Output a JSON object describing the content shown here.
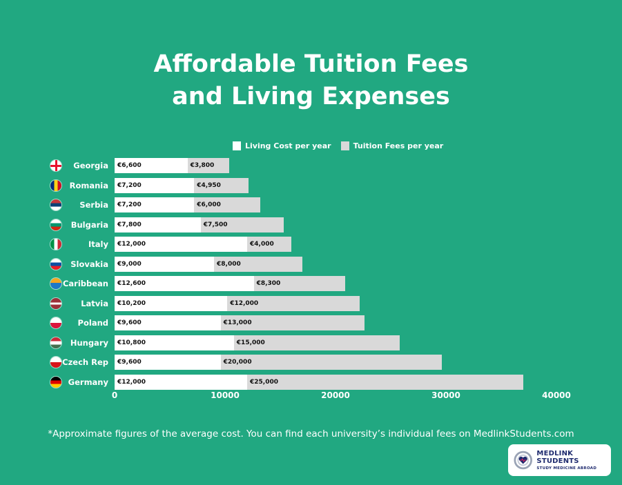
{
  "title_line1": "Affordable Tuition Fees",
  "title_line2": "and Living Expenses",
  "legend": {
    "living": "Living Cost per year",
    "tuition": "Tuition Fees per year"
  },
  "colors": {
    "background": "#21a881",
    "living": "#ffffff",
    "tuition": "#d9d9d9"
  },
  "chart_data": {
    "type": "bar",
    "orientation": "horizontal",
    "stacked": true,
    "categories": [
      "Georgia",
      "Romania",
      "Serbia",
      "Bulgaria",
      "Italy",
      "Slovakia",
      "Caribbean",
      "Latvia",
      "Poland",
      "Hungary",
      "Czech Rep",
      "Germany"
    ],
    "series": [
      {
        "name": "Living Cost per year",
        "values": [
          6600,
          7200,
          7200,
          7800,
          12000,
          9000,
          12600,
          10200,
          9600,
          10800,
          9600,
          12000
        ],
        "labels": [
          "€6,600",
          "€7,200",
          "€7,200",
          "€7,800",
          "€12,000",
          "€9,000",
          "€12,600",
          "€10,200",
          "€9,600",
          "€10,800",
          "€9,600",
          "€12,000"
        ]
      },
      {
        "name": "Tuition Fees per year",
        "values": [
          3800,
          4950,
          6000,
          7500,
          4000,
          8000,
          8300,
          12000,
          13000,
          15000,
          20000,
          25000
        ],
        "labels": [
          "€3,800",
          "€4,950",
          "€6,000",
          "€7,500",
          "€4,000",
          "€8,000",
          "€8,300",
          "€12,000",
          "€13,000",
          "€15,000",
          "€20,000",
          "€25,000"
        ]
      }
    ],
    "xlim": [
      0,
      40000
    ],
    "xticks": [
      "0",
      "10000",
      "20000",
      "30000",
      "40000"
    ],
    "grid": false,
    "legend_position": "top"
  },
  "flags": [
    "georgia-flag-icon",
    "romania-flag-icon",
    "serbia-flag-icon",
    "bulgaria-flag-icon",
    "italy-flag-icon",
    "slovakia-flag-icon",
    "caribbean-flag-icon",
    "latvia-flag-icon",
    "poland-flag-icon",
    "hungary-flag-icon",
    "czech-flag-icon",
    "germany-flag-icon"
  ],
  "footnote": "*Approximate figures of the average cost. You can find each university’s individual fees on MedlinkStudents.com",
  "logo": {
    "title": "MEDLINK STUDENTS",
    "subtitle": "STUDY MEDICINE ABROAD"
  }
}
